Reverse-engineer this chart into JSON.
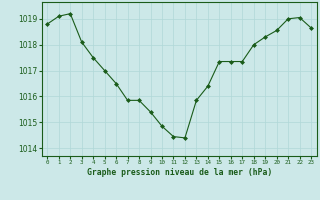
{
  "x": [
    0,
    1,
    2,
    3,
    4,
    5,
    6,
    7,
    8,
    9,
    10,
    11,
    12,
    13,
    14,
    15,
    16,
    17,
    18,
    19,
    20,
    21,
    22,
    23
  ],
  "y": [
    1018.8,
    1019.1,
    1019.2,
    1018.1,
    1017.5,
    1017.0,
    1016.5,
    1015.85,
    1015.85,
    1015.4,
    1014.85,
    1014.45,
    1014.4,
    1015.85,
    1016.4,
    1017.35,
    1017.35,
    1017.35,
    1018.0,
    1018.3,
    1018.55,
    1019.0,
    1019.05,
    1018.65
  ],
  "line_color": "#1a5c1a",
  "marker_color": "#1a5c1a",
  "bg_color": "#cce8e8",
  "grid_color": "#b0d8d8",
  "title": "Graphe pression niveau de la mer (hPa)",
  "ylabel_ticks": [
    1014,
    1015,
    1016,
    1017,
    1018,
    1019
  ],
  "xlim": [
    -0.5,
    23.5
  ],
  "ylim": [
    1013.7,
    1019.65
  ],
  "xtick_labels": [
    "0",
    "1",
    "2",
    "3",
    "4",
    "5",
    "6",
    "7",
    "8",
    "9",
    "10",
    "11",
    "12",
    "13",
    "14",
    "15",
    "16",
    "17",
    "18",
    "19",
    "20",
    "21",
    "22",
    "23"
  ]
}
